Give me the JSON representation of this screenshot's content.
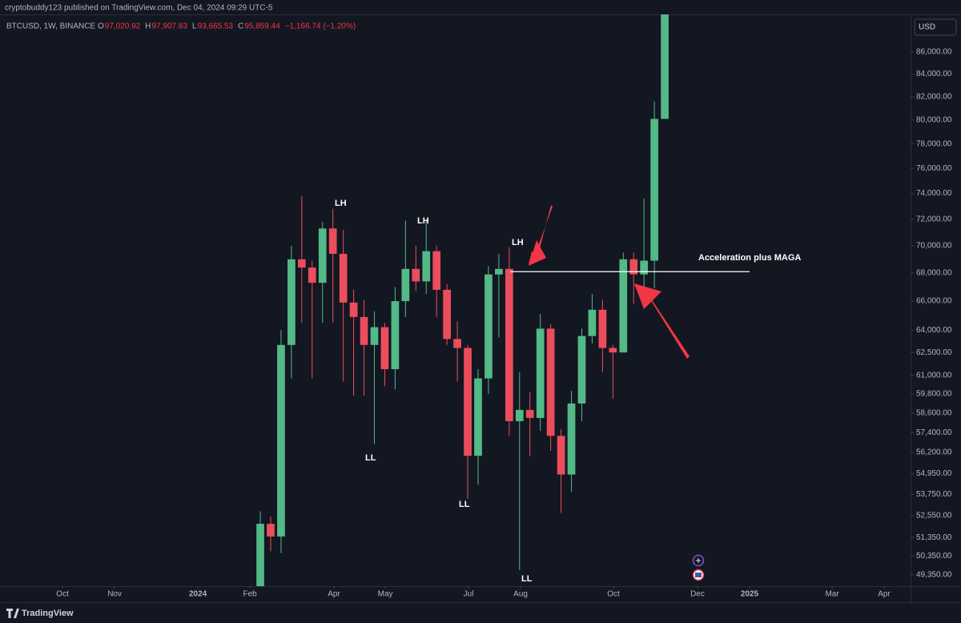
{
  "header": "cryptobuddy123 published on TradingView.com, Dec 04, 2024 09:29 UTC-5",
  "symbol": "BTCUSD, 1W, BINANCE",
  "ohlc_legend": [
    {
      "key": "O",
      "value": "97,020.92"
    },
    {
      "key": "H",
      "value": "97,907.83"
    },
    {
      "key": "L",
      "value": "93,665.53"
    },
    {
      "key": "C",
      "value": "95,859.44"
    }
  ],
  "change": "−1,166.74 (−1.20%)",
  "currency": "USD",
  "brand": "TradingView",
  "chart_data": {
    "type": "candlestick",
    "log_scale": true,
    "grid": false,
    "up_color": "#53b987",
    "down_color": "#eb4d5c",
    "categories": [
      null,
      null,
      null,
      null,
      null,
      null,
      null,
      null,
      null,
      null,
      null,
      null,
      null,
      null,
      null,
      null,
      null,
      null,
      null,
      null,
      null,
      null,
      null,
      null,
      null,
      null,
      null,
      null,
      null,
      null,
      null,
      null,
      null,
      null,
      null,
      null,
      null,
      null,
      null,
      null
    ],
    "open": [
      48300,
      52100,
      51400,
      63000,
      69000,
      68400,
      67300,
      71300,
      69400,
      65900,
      64900,
      63000,
      64200,
      61400,
      66000,
      68300,
      67400,
      69600,
      66800,
      63400,
      62800,
      56000,
      60800,
      67900,
      68300,
      58100,
      58800,
      58300,
      64100,
      57200,
      54900,
      59200,
      63600,
      65400,
      62800,
      62500,
      69000,
      67900,
      68900,
      80100
    ],
    "high": [
      52800,
      52500,
      64000,
      70000,
      73800,
      68900,
      71800,
      72800,
      71200,
      66800,
      66100,
      65300,
      64500,
      67000,
      71900,
      70000,
      71900,
      70000,
      67200,
      64600,
      63000,
      61400,
      68500,
      69400,
      69900,
      61200,
      59900,
      65100,
      64400,
      57600,
      60000,
      64100,
      66500,
      66100,
      63000,
      69500,
      69500,
      73600,
      81600,
      93400
    ],
    "low": [
      47700,
      50600,
      50500,
      60800,
      64500,
      60800,
      64500,
      64500,
      60600,
      59700,
      59700,
      56700,
      60300,
      60100,
      64900,
      66700,
      66500,
      64900,
      63000,
      60600,
      53500,
      54300,
      59800,
      63500,
      57200,
      49600,
      56000,
      57500,
      56300,
      52700,
      53900,
      58100,
      63100,
      61200,
      59500,
      62500,
      65800,
      66900,
      66900,
      80200
    ],
    "close": [
      52100,
      51400,
      63000,
      69000,
      68400,
      67300,
      71300,
      69400,
      65900,
      64900,
      63000,
      64200,
      61400,
      66000,
      68300,
      67400,
      69600,
      66800,
      63400,
      62800,
      56000,
      60800,
      67900,
      68300,
      58100,
      58800,
      58300,
      64100,
      57200,
      54900,
      59200,
      63600,
      65400,
      62800,
      62500,
      69000,
      67900,
      68900,
      80100,
      89900
    ],
    "xlim": [
      -25.1,
      62.7
    ],
    "xticks": [
      {
        "value": -19.07,
        "label": "Oct"
      },
      {
        "value": -14.05,
        "label": "Nov"
      },
      {
        "value": -6.02,
        "label": "2024"
      },
      {
        "value": -1.0,
        "label": "Feb"
      },
      {
        "value": 7.1,
        "label": "Apr"
      },
      {
        "value": 12.05,
        "label": "May"
      },
      {
        "value": 20.08,
        "label": "Jul"
      },
      {
        "value": 25.1,
        "label": "Aug"
      },
      {
        "value": 34.05,
        "label": "Oct"
      },
      {
        "value": 42.16,
        "label": "Dec"
      },
      {
        "value": 47.18,
        "label": "2025"
      },
      {
        "value": 55.14,
        "label": "Mar"
      },
      {
        "value": 60.15,
        "label": "Apr"
      }
    ],
    "ylim": [
      48760,
      89500
    ],
    "yticks": [
      {
        "value": 86000,
        "label": "86,000.00"
      },
      {
        "value": 84000,
        "label": "84,000.00"
      },
      {
        "value": 82000,
        "label": "82,000.00"
      },
      {
        "value": 80000,
        "label": "80,000.00"
      },
      {
        "value": 78000,
        "label": "78,000.00"
      },
      {
        "value": 76000,
        "label": "76,000.00"
      },
      {
        "value": 74000,
        "label": "74,000.00"
      },
      {
        "value": 72000,
        "label": "72,000.00"
      },
      {
        "value": 70000,
        "label": "70,000.00"
      },
      {
        "value": 68000,
        "label": "68,000.00"
      },
      {
        "value": 66000,
        "label": "66,000.00"
      },
      {
        "value": 64000,
        "label": "64,000.00"
      },
      {
        "value": 62500,
        "label": "62,500.00"
      },
      {
        "value": 61000,
        "label": "61,000.00"
      },
      {
        "value": 59800,
        "label": "59,800.00"
      },
      {
        "value": 58600,
        "label": "58,600.00"
      },
      {
        "value": 57400,
        "label": "57,400.00"
      },
      {
        "value": 56200,
        "label": "56,200.00"
      },
      {
        "value": 54950,
        "label": "54,950.00"
      },
      {
        "value": 53750,
        "label": "53,750.00"
      },
      {
        "value": 52550,
        "label": "52,550.00"
      },
      {
        "value": 51350,
        "label": "51,350.00"
      },
      {
        "value": 50350,
        "label": "50,350.00"
      },
      {
        "value": 49350,
        "label": "49,350.00"
      }
    ],
    "level_line": 68100,
    "annotations": [
      "LH",
      "LH",
      "LH",
      "LL",
      "LL",
      "LL",
      "Acceleration plus MAGA"
    ]
  }
}
